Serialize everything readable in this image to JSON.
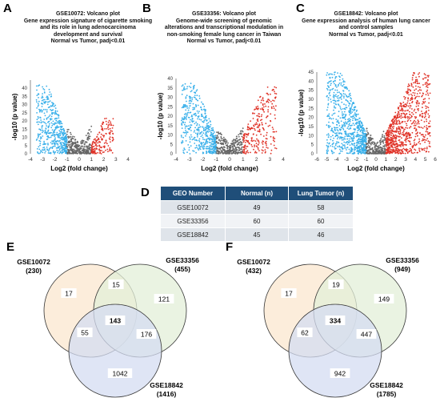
{
  "panels": {
    "A": "A",
    "B": "B",
    "C": "C",
    "D": "D",
    "E": "E",
    "F": "F"
  },
  "volcano_titles": [
    [
      "GSE10072: Volcano plot",
      "Gene expression signature of cigarette smoking",
      "and its role in lung adenocarcinoma",
      "development and survival",
      "Normal vs Tumor,  padj<0.01"
    ],
    [
      "GSE33356: Volcano plot",
      "Genome-wide screening of genomic",
      "alterations and transcriptional modulation in",
      "non-smoking female lung cancer in Taiwan",
      "Normal vs Tumor,  padj<0.01"
    ],
    [
      "GSE18842: Volcano plot",
      "Gene expression analysis of human lung cancer",
      "and control samples",
      "Normal vs Tumor,  padj<0.01"
    ]
  ],
  "colors": {
    "down": "#3ab0ea",
    "ns": "#666666",
    "up": "#e03328",
    "table_header": "#1f4e79",
    "venn_a": "#fbe7cf",
    "venn_b": "#e3efd8",
    "venn_c": "#d4dcf2"
  },
  "chart_data": [
    {
      "type": "scatter",
      "panel": "A",
      "xlabel": "Log2 (fold change)",
      "ylabel": "-log10 (p value)",
      "xlim": [
        -4,
        4
      ],
      "ylim": [
        0,
        45
      ],
      "xticks": [
        -4,
        -3,
        -2,
        -1,
        0,
        1,
        2,
        3,
        4
      ],
      "yticks": [
        0,
        5,
        10,
        15,
        20,
        25,
        30,
        35,
        40
      ],
      "series": [
        {
          "color": "down",
          "x_range": [
            -3.5,
            -1
          ],
          "y_max": 42,
          "n": 500
        },
        {
          "color": "ns",
          "x_range": [
            -1,
            1
          ],
          "y_max": 17,
          "n": 300
        },
        {
          "color": "up",
          "x_range": [
            1,
            2.8
          ],
          "y_max": 22,
          "n": 180
        }
      ]
    },
    {
      "type": "scatter",
      "panel": "B",
      "xlabel": "Log2 (fold change)",
      "ylabel": "-log10 (p value)",
      "xlim": [
        -4,
        4
      ],
      "ylim": [
        0,
        40
      ],
      "xticks": [
        -4,
        -3,
        -2,
        -1,
        0,
        1,
        2,
        3,
        4
      ],
      "yticks": [
        0,
        5,
        10,
        15,
        20,
        25,
        30,
        35,
        40
      ],
      "series": [
        {
          "color": "down",
          "x_range": [
            -3.6,
            -1
          ],
          "y_max": 38,
          "n": 520
        },
        {
          "color": "ns",
          "x_range": [
            -1,
            1
          ],
          "y_max": 14,
          "n": 300
        },
        {
          "color": "up",
          "x_range": [
            1,
            3.5
          ],
          "y_max": 36,
          "n": 260
        }
      ]
    },
    {
      "type": "scatter",
      "panel": "C",
      "xlabel": "Log2 (fold change)",
      "ylabel": "-log10 (p value)",
      "xlim": [
        -6,
        6
      ],
      "ylim": [
        0,
        45
      ],
      "xticks": [
        -6,
        -5,
        -4,
        -3,
        -2,
        -1,
        0,
        1,
        2,
        3,
        4,
        5,
        6
      ],
      "yticks": [
        0,
        5,
        10,
        15,
        20,
        25,
        30,
        35,
        40,
        45
      ],
      "series": [
        {
          "color": "down",
          "x_range": [
            -5,
            -1
          ],
          "y_max": 45,
          "n": 800
        },
        {
          "color": "ns",
          "x_range": [
            -1,
            1
          ],
          "y_max": 15,
          "n": 250
        },
        {
          "color": "up",
          "x_range": [
            1,
            5.5
          ],
          "y_max": 45,
          "n": 800
        }
      ]
    },
    {
      "type": "table",
      "panel": "D",
      "headers": [
        "GEO Number",
        "Normal (n)",
        "Lung Tumor (n)"
      ],
      "rows": [
        [
          "GSE10072",
          "49",
          "58"
        ],
        [
          "GSE33356",
          "60",
          "60"
        ],
        [
          "GSE18842",
          "45",
          "46"
        ]
      ]
    },
    {
      "type": "venn",
      "panel": "E",
      "sets": [
        {
          "name": "GSE10072",
          "total": "(230)"
        },
        {
          "name": "GSE33356",
          "total": "(455)"
        },
        {
          "name": "GSE18842",
          "total": "(1416)"
        }
      ],
      "regions": {
        "a_only": "17",
        "b_only": "121",
        "c_only": "1042",
        "ab": "15",
        "ac": "55",
        "bc": "176",
        "abc": "143"
      }
    },
    {
      "type": "venn",
      "panel": "F",
      "sets": [
        {
          "name": "GSE10072",
          "total": "(432)"
        },
        {
          "name": "GSE33356",
          "total": "(949)"
        },
        {
          "name": "GSE18842",
          "total": "(1785)"
        }
      ],
      "regions": {
        "a_only": "17",
        "b_only": "149",
        "c_only": "942",
        "ab": "19",
        "ac": "62",
        "bc": "447",
        "abc": "334"
      }
    }
  ]
}
